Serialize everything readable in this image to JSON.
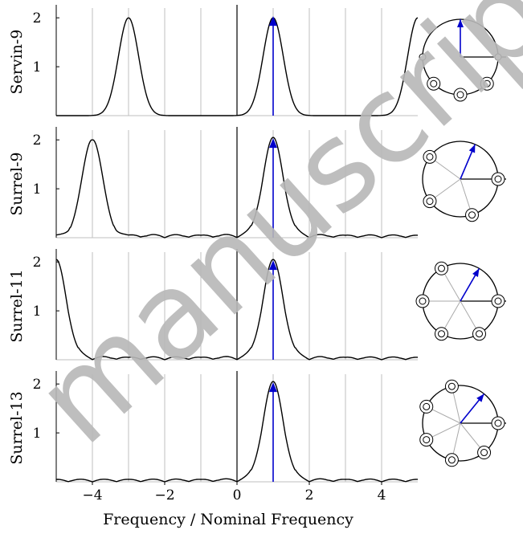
{
  "figure": {
    "xlabel": "Frequency / Nominal Frequency",
    "watermark": "manuscript",
    "colors": {
      "curve": "#000000",
      "arrow": "#0000cc",
      "grid": "#bfbfbf",
      "watermark": "#b8b8b8"
    }
  },
  "chart_data": [
    {
      "type": "line",
      "ylabel": "Servin-9",
      "xlim": [
        -5,
        5
      ],
      "ylim": [
        0,
        2.2
      ],
      "xticks": [
        -4,
        -2,
        0,
        2,
        4
      ],
      "yticks": [
        1,
        2
      ],
      "grid": true,
      "peaks": [
        -3,
        1,
        5
      ],
      "sidelobes": false,
      "arrow": {
        "x": 1,
        "y": 2
      },
      "phasor": {
        "circle_count": 5,
        "arrow_angle_deg": 90,
        "spoke_angles_deg": [],
        "small_circle_angles_deg": [
          0,
          180
        ],
        "double_circle_angles_deg": [
          -45,
          -90,
          -135
        ]
      }
    },
    {
      "type": "line",
      "ylabel": "Surrel-9",
      "xlim": [
        -5,
        5
      ],
      "ylim": [
        0,
        2.2
      ],
      "xticks": [
        -4,
        -2,
        0,
        2,
        4
      ],
      "yticks": [
        1,
        2
      ],
      "grid": true,
      "peaks": [
        -4,
        1
      ],
      "sidelobes": true,
      "arrow": {
        "x": 1,
        "y": 2
      },
      "phasor": {
        "circle_count": 5,
        "arrow_angle_deg": 67,
        "spoke_angles_deg": [
          144,
          216,
          288
        ],
        "small_circle_angles_deg": [],
        "double_circle_angles_deg": [
          0,
          144,
          216,
          288
        ]
      }
    },
    {
      "type": "line",
      "ylabel": "Surrel-11",
      "xlim": [
        -5,
        5
      ],
      "ylim": [
        0,
        2.2
      ],
      "xticks": [
        -4,
        -2,
        0,
        2,
        4
      ],
      "yticks": [
        1,
        2
      ],
      "grid": true,
      "peaks": [
        -5,
        1
      ],
      "sidelobes": true,
      "arrow": {
        "x": 1,
        "y": 2
      },
      "phasor": {
        "circle_count": 6,
        "arrow_angle_deg": 60,
        "spoke_angles_deg": [
          120,
          180,
          240,
          300
        ],
        "small_circle_angles_deg": [],
        "double_circle_angles_deg": [
          0,
          120,
          180,
          240,
          300
        ]
      }
    },
    {
      "type": "line",
      "ylabel": "Surrel-13",
      "xlim": [
        -5,
        5
      ],
      "ylim": [
        0,
        2.2
      ],
      "xticks": [
        -4,
        -2,
        0,
        2,
        4
      ],
      "yticks": [
        1,
        2
      ],
      "grid": true,
      "peaks": [
        1
      ],
      "sidelobes": true,
      "arrow": {
        "x": 1,
        "y": 2
      },
      "phasor": {
        "circle_count": 7,
        "arrow_angle_deg": 51,
        "spoke_angles_deg": [
          103,
          154,
          206,
          257,
          309
        ],
        "small_circle_angles_deg": [],
        "double_circle_angles_deg": [
          0,
          103,
          154,
          206,
          257,
          309
        ]
      }
    }
  ]
}
